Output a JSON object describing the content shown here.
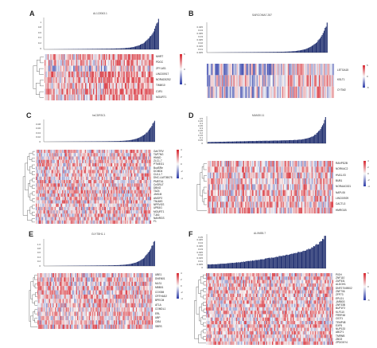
{
  "panels": [
    {
      "label": "A",
      "title": "AL122063.1",
      "yticks": [
        "1",
        "0.8",
        "0.6",
        "0.4",
        "0.2",
        "0"
      ],
      "genes": [
        "MHRT",
        "PDGC",
        "ZFY-AS1",
        "LINC00917",
        "NORAD0252",
        "TIMM10",
        "C1R1",
        "MOURT1"
      ],
      "colorbar": [
        "5",
        "0",
        "-5"
      ]
    },
    {
      "label": "B",
      "title": "SARCOMA7.287",
      "yticks": [
        "0.045",
        "0.04",
        "0.035",
        "0.03",
        "0.025",
        "0.02",
        "0.015",
        "0.01",
        "0.005"
      ],
      "genes": [
        "LETGA15",
        "KSLT1",
        "CYTM2"
      ],
      "colorbar": [
        "5",
        "0",
        "-5"
      ]
    },
    {
      "label": "C",
      "title": "hsCDR3C1",
      "yticks": [
        "0.08",
        "0.06",
        "0.04",
        "0.02",
        "0"
      ],
      "genes": [
        "GaVTRV",
        "TAP7NG",
        "HMAD",
        "ZLC1-7",
        "PTMEG1",
        "BudSRe",
        "DCMD4",
        "CUL1-7",
        "DNC-LAIT05078",
        "PMETA1",
        "CnSRU7",
        "DBNG",
        "TAZ4",
        "JAK1M",
        "AMOP2",
        "TNUMS",
        "NPRVGS",
        "UPB3G",
        "MOURT1",
        "TJA3",
        "NANRGS",
        "F1"
      ],
      "colorbar": [
        "4",
        "2",
        "0",
        "-2",
        "-4"
      ]
    },
    {
      "label": "D",
      "title": "MAN30.11",
      "yticks": [
        "0.5",
        "0.45",
        "0.4",
        "0.35",
        "0.3",
        "0.25",
        "0.2",
        "0.15",
        "0.1",
        "0.05",
        "0"
      ],
      "genes": [
        "RANPD2B",
        "NORKAC2",
        "HVA1-03",
        "BUB1",
        "NORAAG021",
        "NAPL06",
        "LINC00929",
        "CACTL3",
        "HMRG1B"
      ],
      "colorbar": [
        "4",
        "2",
        "0",
        "-2",
        "-4"
      ]
    },
    {
      "label": "E",
      "title": "GLYT8H1.1",
      "yticks": [
        "1.0",
        "0.8",
        "0.6",
        "0.4",
        "0.2",
        "0"
      ],
      "genes": [
        "UBE1",
        "DNEN01",
        "MLS1",
        "MBB01",
        "COX5M",
        "CRTHAD2",
        "BPECM",
        "AT1A",
        "COMDL1",
        "ERL",
        "UBP",
        "CIB4",
        "SBRS"
      ],
      "colorbar": [
        "4",
        "2",
        "0",
        "-2",
        "-4"
      ]
    },
    {
      "label": "F",
      "title": "AL0M55.7",
      "yticks": [
        "0.05",
        "0.045",
        "0.04",
        "0.035",
        "0.03",
        "0.025",
        "0.02",
        "0.015",
        "0.01",
        "0.005",
        "0"
      ],
      "genes": [
        "PIGH",
        "ZNF110",
        "ZUP331",
        "ALDOH1",
        "DNF27049002",
        "ZNF706",
        "ZFP73",
        "EPLD1",
        "JAR803",
        "ZNF33B",
        "BUP1F2",
        "KLF110",
        "FRRF48",
        "CIDT1",
        "TEMP48",
        "EXP5",
        "NUP133",
        "ABCF1",
        "TMRNB",
        "ZBO2",
        "ZPDGKY4"
      ],
      "colorbar": [
        "5",
        "0",
        "-5"
      ]
    }
  ],
  "colors": {
    "bars": "#1e2d6e",
    "high": "#d7262f",
    "mid": "#f7f7f7",
    "low": "#2b3aa8"
  }
}
